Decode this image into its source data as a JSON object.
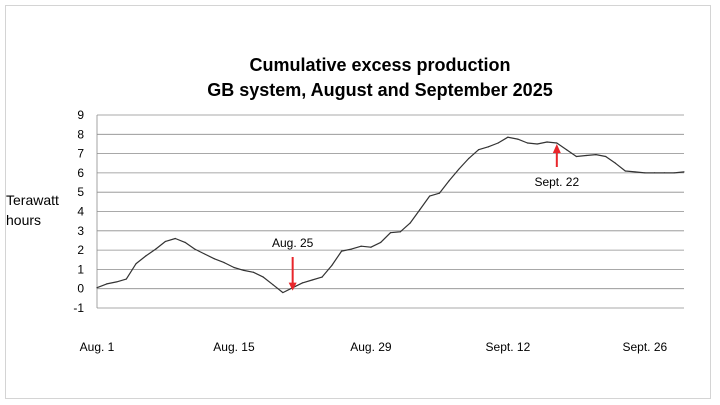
{
  "chart_data": {
    "type": "line",
    "title": [
      "Cumulative excess production",
      "GB system, August and September 2025"
    ],
    "ylabel": [
      "Terawatt",
      "hours"
    ],
    "xlabel": "",
    "ylim": [
      -1,
      9
    ],
    "yticks": [
      -1,
      0,
      1,
      2,
      3,
      4,
      5,
      6,
      7,
      8,
      9
    ],
    "xlim": [
      1,
      61
    ],
    "xticks": [
      {
        "day": 1,
        "label": "Aug. 1"
      },
      {
        "day": 15,
        "label": "Aug. 15"
      },
      {
        "day": 29,
        "label": "Aug. 29"
      },
      {
        "day": 43,
        "label": "Sept. 12"
      },
      {
        "day": 57,
        "label": "Sept. 26"
      }
    ],
    "grid": true,
    "series": [
      {
        "name": "Cumulative excess production",
        "color": "#333333",
        "x": [
          1,
          2,
          3,
          4,
          5,
          6,
          7,
          8,
          9,
          10,
          11,
          12,
          13,
          14,
          15,
          16,
          17,
          18,
          19,
          20,
          21,
          22,
          23,
          24,
          25,
          26,
          27,
          28,
          29,
          30,
          31,
          32,
          33,
          34,
          35,
          36,
          37,
          38,
          39,
          40,
          41,
          42,
          43,
          44,
          45,
          46,
          47,
          48,
          49,
          50,
          51,
          52,
          53,
          54,
          55,
          56,
          57,
          58,
          59,
          60,
          61
        ],
        "values": [
          0.05,
          0.25,
          0.35,
          0.5,
          1.3,
          1.7,
          2.05,
          2.45,
          2.6,
          2.4,
          2.05,
          1.8,
          1.55,
          1.35,
          1.1,
          0.95,
          0.85,
          0.6,
          0.2,
          -0.2,
          0.05,
          0.3,
          0.45,
          0.6,
          1.2,
          1.95,
          2.05,
          2.2,
          2.15,
          2.4,
          2.9,
          2.95,
          3.4,
          4.1,
          4.8,
          4.95,
          5.6,
          6.2,
          6.75,
          7.2,
          7.35,
          7.55,
          7.85,
          7.75,
          7.55,
          7.5,
          7.6,
          7.55,
          7.2,
          6.85,
          6.9,
          6.95,
          6.85,
          6.5,
          6.1,
          6.05,
          6.0,
          6.0,
          6.0,
          6.0,
          6.05
        ]
      }
    ],
    "annotations": [
      {
        "label": "Aug. 25",
        "day": 21,
        "value": -0.1,
        "direction": "down",
        "color": "#e8262b"
      },
      {
        "label": "Sept. 22",
        "day": 48,
        "value": 7.5,
        "direction": "up",
        "color": "#e8262b"
      }
    ]
  }
}
